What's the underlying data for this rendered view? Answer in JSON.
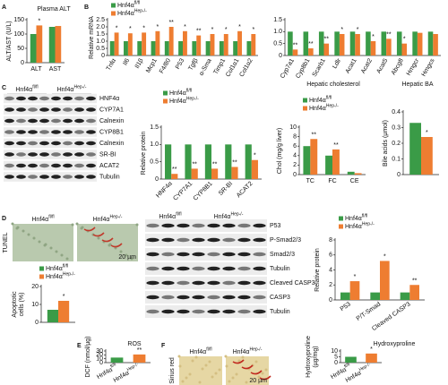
{
  "panel_letters": [
    "A",
    "B",
    "C",
    "D",
    "E",
    "F"
  ],
  "blots": [
    {
      "groups": [
        {
          "name": "Hnf4α",
          "sup": "fl/fl"
        },
        {
          "name": "Hnf4α",
          "sup": "Hep-/-"
        }
      ],
      "rows": [
        "HNF4α",
        "CYP7A1",
        "Calnexin",
        "CYP8B1",
        "Calnexin",
        "SR-BI",
        "ACAT2",
        "Tubulin"
      ]
    },
    {
      "groups": [
        {
          "name": "Hnf4α",
          "sup": "fl/fl"
        },
        {
          "name": "Hnf4α",
          "sup": "Hep-/-"
        }
      ],
      "rows": [
        "P53",
        "P-Smad2/3",
        "Smad2/3",
        "Tubulin",
        "Cleaved CASP3",
        "CASP3",
        "Tubulin"
      ]
    }
  ],
  "images": [
    {
      "side_label": "TUNEL",
      "scale_bar": "20 µm",
      "panels": [
        {
          "name": "Hnf4α",
          "sup": "fl/fl"
        },
        {
          "name": "Hnf4α",
          "sup": "Hep-/-"
        }
      ]
    },
    {
      "side_label": "Sirius red",
      "scale_bar": "20 µm",
      "panels": [
        {
          "name": "Hnf4α",
          "sup": "fl/fl"
        },
        {
          "name": "Hnf4α",
          "sup": "Hep-/-"
        }
      ]
    }
  ],
  "chart_data": [
    {
      "type": "bar",
      "title": "Plasma ALT",
      "title_color": "#e5231b",
      "ylabel": "ALT/AST (U/L)",
      "categories": [
        "ALT",
        "AST"
      ],
      "ylim": [
        0,
        150
      ],
      "yticks": [
        0,
        50,
        100,
        150
      ],
      "series": [
        {
          "name": "Hnf4α",
          "name_sup": "fl/fl",
          "color": "#3a9b47",
          "values": [
            100,
            125
          ]
        },
        {
          "name": "Hnf4α",
          "name_sup": "Hep-/-",
          "color": "#ee7d31",
          "values": [
            130,
            128
          ],
          "annotations": [
            "*",
            null
          ]
        }
      ]
    },
    {
      "type": "bar",
      "ylabel": "Relative mRNA",
      "legend": true,
      "categories": [
        "Tnfα",
        "Il6",
        "Il1β",
        "Mcp1",
        "F4/80",
        "P53",
        "Tgfβ",
        "α-Sma",
        "Timp1",
        "Col1α1",
        "Col1α2"
      ],
      "ylim": [
        0,
        2.5
      ],
      "yticks": [
        0,
        0.5,
        {
          "value": 1,
          "label": "1.0"
        },
        1.5,
        {
          "value": 2,
          "label": "2.0"
        },
        2.5
      ],
      "series": [
        {
          "name": "Hnf4α",
          "name_sup": "fl/fl",
          "color": "#3a9b47",
          "values": [
            1,
            1,
            1,
            1,
            1,
            1,
            1,
            1,
            1,
            1,
            1
          ]
        },
        {
          "name": "Hnf4α",
          "name_sup": "Hep-/-",
          "color": "#ee7d31",
          "values": [
            1.6,
            1.55,
            1.6,
            1.7,
            2.0,
            1.7,
            1.4,
            1.5,
            1.5,
            1.7,
            1.5
          ],
          "annotations": [
            "*",
            "*",
            "*",
            "*",
            "**",
            "*",
            "**",
            "*",
            "*",
            "*",
            "*"
          ]
        }
      ]
    },
    {
      "type": "bar",
      "categories": [
        "Cyp7a1",
        "Cyp8b1",
        "Scarb1",
        "Ldlr",
        "Acat1",
        "Acat2",
        "Acat5",
        "Abcg8",
        "Hmgcr",
        "Hmgcs"
      ],
      "ylim": [
        0,
        1.5
      ],
      "yticks": [
        0,
        0.5,
        {
          "value": 1,
          "label": "1.0"
        },
        1.5
      ],
      "series": [
        {
          "name": "Hnf4α",
          "name_sup": "fl/fl",
          "color": "#3a9b47",
          "values": [
            1,
            1,
            1,
            1,
            1,
            1,
            1,
            1,
            1,
            1
          ]
        },
        {
          "name": "Hnf4α",
          "name_sup": "Hep-/-",
          "color": "#ee7d31",
          "values": [
            0.25,
            0.3,
            0.5,
            0.9,
            0.9,
            0.6,
            0.7,
            0.5,
            0.95,
            0.9
          ],
          "annotations": [
            "**",
            "**",
            "**",
            "*",
            "*",
            "*",
            "**",
            "*",
            null,
            null
          ]
        }
      ]
    },
    {
      "type": "bar",
      "ylabel": "Relative protein",
      "legend": true,
      "categories": [
        "HNF4α",
        "CYP7A1",
        "CYP8B1",
        "SR-BI",
        "ACAT2"
      ],
      "ylim": [
        0,
        1.5
      ],
      "yticks": [
        0,
        0.5,
        {
          "value": 1,
          "label": "1.0"
        },
        1.5
      ],
      "series": [
        {
          "name": "Hnf4α",
          "name_sup": "fl/fl",
          "color": "#3a9b47",
          "values": [
            1,
            1,
            1,
            1,
            1
          ]
        },
        {
          "name": "Hnf4α",
          "name_sup": "Hep-/-",
          "color": "#ee7d31",
          "values": [
            0.15,
            0.3,
            0.3,
            0.35,
            0.55
          ],
          "annotations": [
            "**",
            "**",
            "**",
            "**",
            "*"
          ]
        }
      ]
    },
    {
      "type": "bar",
      "title": "Hepatic cholesterol",
      "title_color": "#e5231b",
      "ylabel": "Chol (mg/g liver)",
      "legend": true,
      "categories": [
        "TC",
        "FC",
        "CE"
      ],
      "ylim": [
        0,
        10
      ],
      "yticks": [
        0,
        2,
        4,
        6,
        8,
        10
      ],
      "series": [
        {
          "name": "Hnf4α",
          "name_sup": "fl/fl",
          "color": "#3a9b47",
          "values": [
            6,
            4,
            0.6
          ]
        },
        {
          "name": "Hnf4α",
          "name_sup": "Hep-/-",
          "color": "#ee7d31",
          "values": [
            7.5,
            5.3,
            0.3
          ],
          "annotations": [
            "**",
            "**",
            null
          ]
        }
      ]
    },
    {
      "type": "bar",
      "title": "Hepatic BA",
      "title_color": "#e5231b",
      "ylabel": "Bile acids (µmol)",
      "categories": [
        null
      ],
      "ylim": [
        0,
        0.4
      ],
      "yticks": [
        0,
        0.1,
        0.2,
        0.3,
        0.4
      ],
      "series": [
        {
          "name": "Hnf4α",
          "name_sup": "fl/fl",
          "color": "#3a9b47",
          "values": [
            0.33
          ]
        },
        {
          "name": "Hnf4α",
          "name_sup": "Hep-/-",
          "color": "#ee7d31",
          "values": [
            0.24
          ],
          "annotations": [
            "*"
          ]
        }
      ]
    },
    {
      "type": "bar",
      "ylabel": [
        "Apoptotic",
        "cells (%)"
      ],
      "legend": true,
      "categories": [
        null
      ],
      "ylim": [
        0,
        20
      ],
      "yticks": [
        0,
        10,
        20
      ],
      "series": [
        {
          "name": "Hnf4α",
          "name_sup": "fl/fl",
          "color": "#3a9b47",
          "values": [
            7
          ]
        },
        {
          "name": "Hnf4α",
          "name_sup": "Hep-/-",
          "color": "#ee7d31",
          "values": [
            12
          ],
          "annotations": [
            "*"
          ]
        }
      ]
    },
    {
      "type": "bar",
      "ylabel": "Relative protein",
      "legend": true,
      "categories": [
        "P53",
        "P/T-Smad",
        "Cleaved CASP3"
      ],
      "ylim": [
        0,
        8
      ],
      "yticks": [
        0,
        2,
        4,
        6,
        8
      ],
      "series": [
        {
          "name": "Hnf4α",
          "name_sup": "fl/fl",
          "color": "#3a9b47",
          "values": [
            1,
            1,
            1
          ]
        },
        {
          "name": "Hnf4α",
          "name_sup": "Hep-/-",
          "color": "#ee7d31",
          "values": [
            2.5,
            5.2,
            2.0
          ],
          "annotations": [
            "*",
            "*",
            "**"
          ]
        }
      ]
    },
    {
      "type": "bar",
      "title": "ROS",
      "title_color": "#e5231b",
      "ylabel": "DCF (nmol/µg)",
      "categories": [
        "Hnf4α",
        "Hnf4α"
      ],
      "category_sups": [
        "fl/fl",
        "Hep-/-"
      ],
      "ylim": [
        0,
        30
      ],
      "yticks": [
        0,
        10,
        20,
        30
      ],
      "values": [
        13,
        21
      ],
      "colors": [
        "#3a9b47",
        "#ee7d31"
      ],
      "annotations": [
        null,
        "**"
      ]
    },
    {
      "type": "bar",
      "title": "Hydroxyproline",
      "title_color": "#e5231b",
      "ylabel": [
        "Hydroxyproline",
        "(µg/mg)"
      ],
      "categories": [
        "Hnf4α",
        "Hnf4α"
      ],
      "category_sups": [
        "fl/fl",
        "Hep-/-"
      ],
      "ylim": [
        0,
        10
      ],
      "yticks": [
        0,
        5,
        10
      ],
      "values": [
        5,
        7.8
      ],
      "colors": [
        "#3a9b47",
        "#ee7d31"
      ],
      "annotations": [
        null,
        "*"
      ]
    }
  ]
}
